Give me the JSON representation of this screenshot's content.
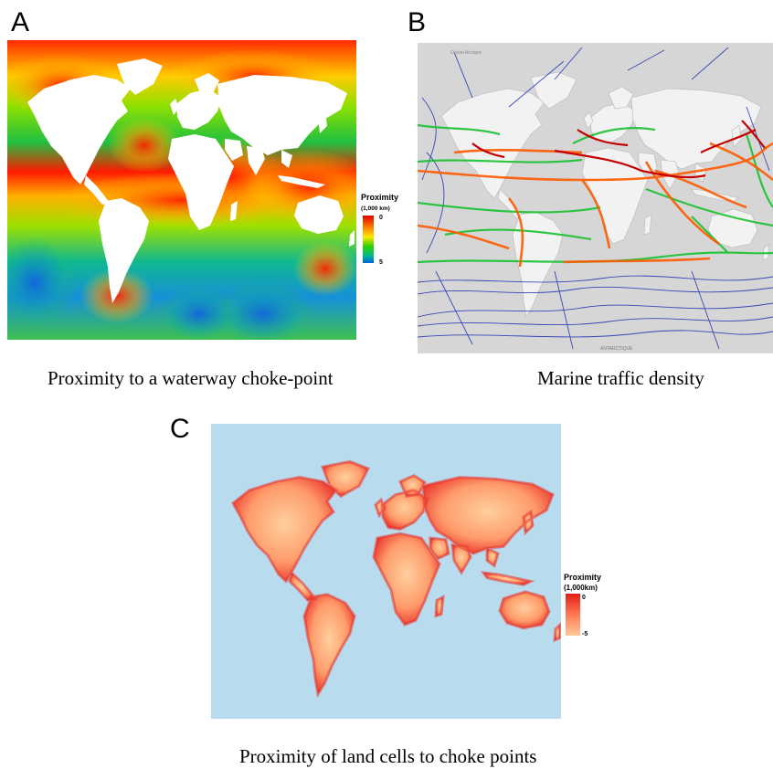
{
  "panels": {
    "a": {
      "letter": "A",
      "caption": "Proximity to a waterway choke-point",
      "legend": {
        "title": "Proximity",
        "unit": "(1,000 km)",
        "min_label": "0",
        "max_label": "5"
      }
    },
    "b": {
      "letter": "B",
      "caption": "Marine traffic density",
      "map_labels": {
        "north": "Océan Arctique",
        "south": "ANTARCTIQUE"
      }
    },
    "c": {
      "letter": "C",
      "caption": "Proximity of land cells to choke points",
      "legend": {
        "title": "Proximity",
        "unit": "(1,000km)",
        "min_label": "0",
        "max_label": "-5"
      }
    }
  },
  "colors": {
    "ramp_a": [
      "#e00000",
      "#ff7a00",
      "#ffe600",
      "#2fd000",
      "#00c070",
      "#0070e0"
    ],
    "ramp_c": [
      "#e21d17",
      "#ff8a5a",
      "#ffc79a"
    ],
    "ocean_c": "#b9dbee",
    "land_b": "#f2f2f2",
    "ocean_b": "#d6d6d6",
    "traffic": [
      "#1a2fb0",
      "#19c230",
      "#ff5a00",
      "#c40000"
    ]
  }
}
